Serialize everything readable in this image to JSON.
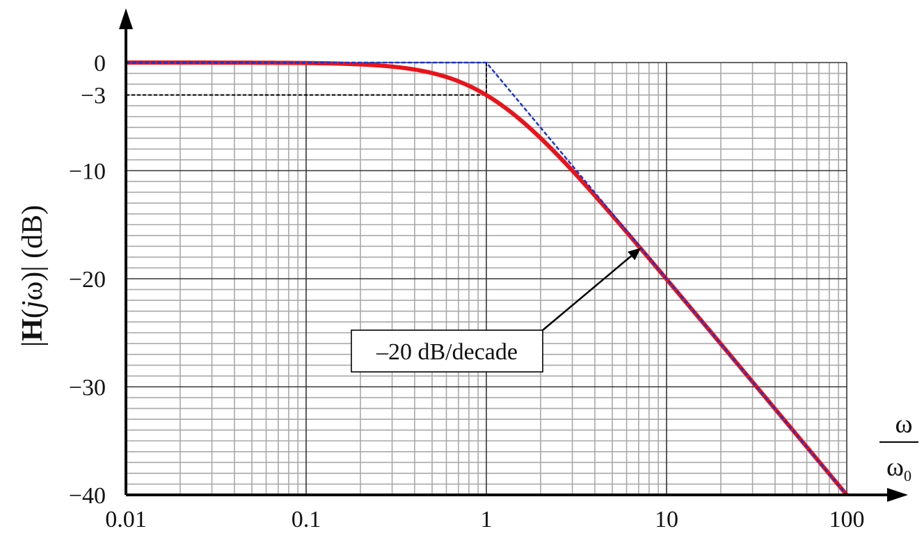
{
  "chart_data": {
    "type": "line",
    "x_scale": "log",
    "xlim": [
      0.01,
      100
    ],
    "ylim": [
      -40,
      0
    ],
    "grid": true,
    "x_ticks": [
      "0.01",
      "0.1",
      "1",
      "10",
      "100"
    ],
    "y_ticks": [
      "0",
      "−3",
      "−10",
      "−20",
      "−30",
      "−40"
    ],
    "y_tick_values": [
      0,
      -3,
      -10,
      -20,
      -30,
      -40
    ],
    "ylabel": {
      "bars_left": "|",
      "bold_h": "H",
      "open": "(",
      "j": "j",
      "omega": "ω",
      "close": ")",
      "bars_right": "|",
      "unit": " (dB)"
    },
    "xlabel": {
      "numerator": "ω",
      "denominator": "ω",
      "denominator_subscript": "0"
    },
    "annotation": {
      "text": "–20 dB/decade",
      "arrow_target": [
        7.2,
        -17.15
      ]
    },
    "reference_lines": [
      {
        "from": [
          0.01,
          -3
        ],
        "to": [
          1,
          -3
        ],
        "style": "dashed-black"
      },
      {
        "from": [
          1,
          0
        ],
        "to": [
          1,
          -3
        ],
        "style": "dashed-black"
      }
    ],
    "series": [
      {
        "role": "actual response",
        "color": "#e8141b",
        "x": [
          0.01,
          0.02,
          0.05,
          0.1,
          0.2,
          0.3,
          0.5,
          0.7,
          1,
          1.5,
          2,
          3,
          5,
          7,
          10,
          20,
          50,
          100
        ],
        "y": [
          0,
          0,
          -0.01,
          -0.04,
          -0.17,
          -0.37,
          -0.97,
          -1.67,
          -3.01,
          -5.12,
          -6.99,
          -10.0,
          -14.15,
          -17.03,
          -20.04,
          -26.03,
          -33.98,
          -40.0
        ]
      },
      {
        "role": "asymptotic approximation",
        "color": "#1a33cc",
        "x": [
          0.01,
          1,
          100
        ],
        "y": [
          0,
          0,
          -40
        ]
      }
    ]
  }
}
